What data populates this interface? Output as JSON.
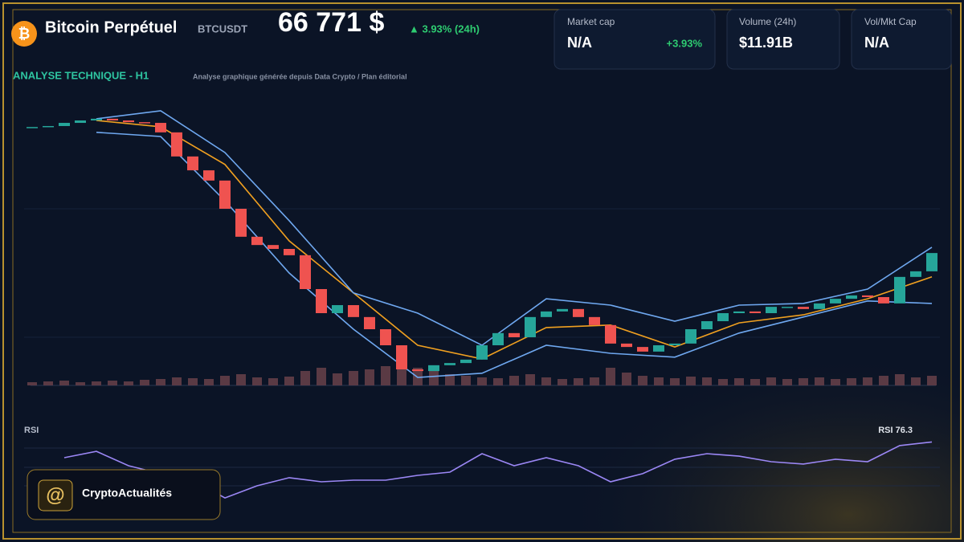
{
  "header": {
    "title": "Bitcoin Perpétuel",
    "symbol": "BTCUSDT",
    "price": "66 771 $",
    "change": "▲ 3.93% (24h)"
  },
  "stats": [
    {
      "label": "Market cap",
      "value": "N/A",
      "extra": "+3.93%"
    },
    {
      "label": "Volume (24h)",
      "value": "$11.91B"
    },
    {
      "label": "Vol/Mkt Cap",
      "value": "N/A"
    }
  ],
  "section": {
    "title": "ANALYSE TECHNIQUE - H1",
    "subtitle": "Analyse graphique générée depuis Data Crypto / Plan éditorial"
  },
  "footer": {
    "brand": "CryptoActualités"
  },
  "chart_data": [
    {
      "type": "candlestick",
      "up_color": "#26a69a",
      "down_color": "#ef5350",
      "ylim": [
        61000,
        72880
      ],
      "values": [
        71950,
        71990,
        72120,
        72220,
        72290,
        72220,
        72150,
        72120,
        71730,
        70740,
        70170,
        69750,
        68590,
        67440,
        67100,
        66940,
        66680,
        65290,
        64300,
        64630,
        64140,
        63640,
        62980,
        61990,
        61920,
        62160,
        62250,
        62390,
        62980,
        63480,
        63310,
        64140,
        64370,
        64470,
        64140,
        63810,
        63050,
        62910,
        62720,
        62980,
        63050,
        63640,
        63970,
        64300,
        64370,
        64300,
        64560,
        64560,
        64470,
        64700,
        64890,
        65030,
        64960,
        64700,
        65790,
        66020,
        66771
      ]
    },
    {
      "type": "line",
      "ylim": [
        61000,
        72880
      ],
      "series": [
        {
          "color": "#f0a020",
          "values": [
            null,
            72220,
            71960,
            70410,
            67270,
            65130,
            62980,
            62420,
            63710,
            63810,
            62910,
            63900,
            64230,
            64890,
            65790
          ]
        },
        {
          "color": "#6fa8f0",
          "values": [
            null,
            72290,
            72620,
            70900,
            68100,
            65130,
            64300,
            62980,
            64890,
            64630,
            63970,
            64630,
            64700,
            65290,
            67010
          ]
        },
        {
          "color": "#6fa8f0",
          "values": [
            null,
            71730,
            71560,
            68920,
            65950,
            63640,
            61660,
            61830,
            62980,
            62650,
            62490,
            63480,
            64140,
            64800,
            64700
          ]
        }
      ]
    },
    {
      "type": "bar",
      "color": "#5a3a44",
      "ylim": [
        0,
        100
      ],
      "values": [
        4,
        5,
        6,
        4,
        5,
        6,
        5,
        7,
        8,
        10,
        9,
        8,
        12,
        14,
        10,
        9,
        11,
        18,
        22,
        15,
        18,
        20,
        24,
        28,
        22,
        18,
        14,
        12,
        10,
        9,
        12,
        14,
        10,
        8,
        9,
        10,
        22,
        16,
        12,
        10,
        9,
        11,
        10,
        8,
        9,
        8,
        10,
        8,
        9,
        10,
        8,
        9,
        10,
        12,
        14,
        10,
        12
      ]
    },
    {
      "type": "line",
      "title": "RSI",
      "annotation": "RSI 76.3",
      "color": "#9b87f5",
      "ylim": [
        0,
        100
      ],
      "values": [
        64.2,
        69.1,
        58.0,
        51.9,
        46.9,
        33.3,
        42.6,
        48.8,
        45.7,
        46.9,
        46.9,
        50.6,
        53.1,
        67.3,
        58.0,
        64.2,
        58.0,
        45.7,
        51.9,
        63.0,
        67.3,
        65.4,
        61.1,
        59.3,
        63.0,
        61.1,
        73.5,
        76.3
      ]
    }
  ]
}
